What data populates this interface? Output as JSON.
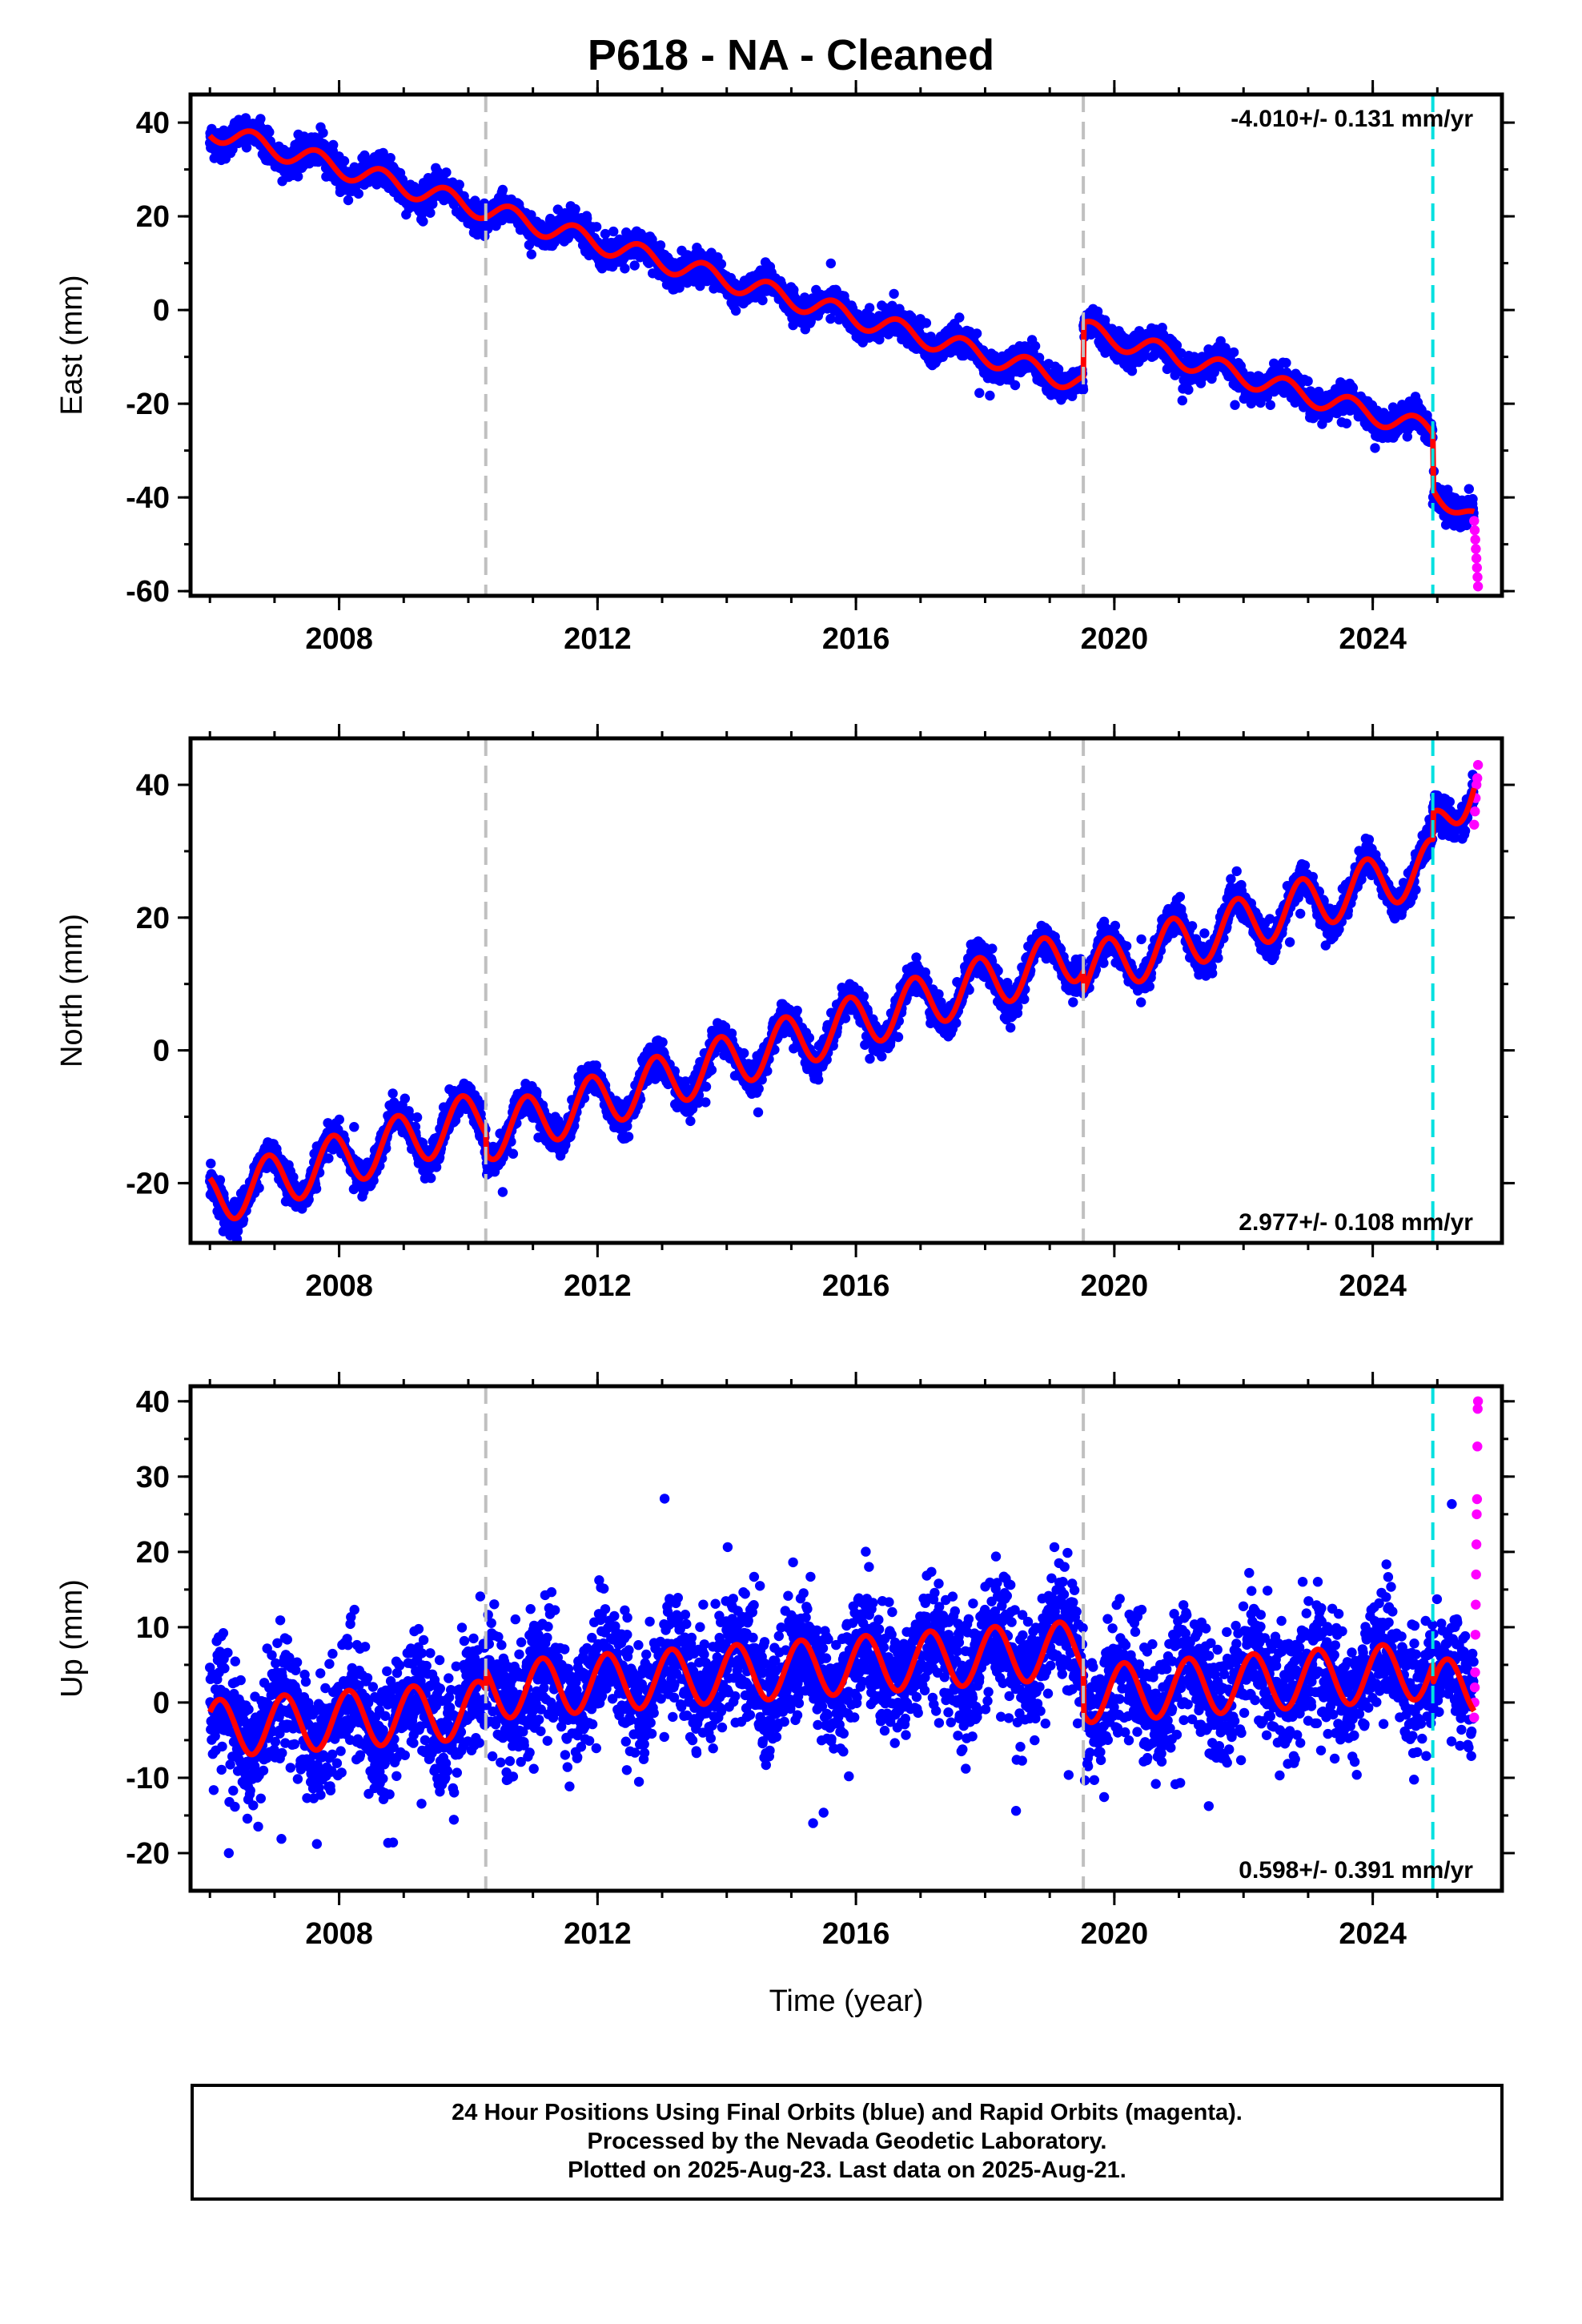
{
  "title": "P618  - NA - Cleaned",
  "caption": {
    "line1": "24 Hour Positions Using Final Orbits (blue) and Rapid Orbits (magenta).",
    "line2": "Processed by the Nevada Geodetic Laboratory.",
    "line3": "Plotted on 2025-Aug-23. Last data on 2025-Aug-21."
  },
  "colors": {
    "final_orbits": "#0000ff",
    "rapid_orbits": "#ff00ff",
    "model": "#ff0000",
    "equipment_change": "#c0c0c0",
    "earthquake": "#00e0e0"
  },
  "chart_data": [
    {
      "type": "scatter",
      "ylabel": "East (mm)",
      "xlabel": "",
      "xlim": [
        2005.7,
        2026.0
      ],
      "ylim": [
        -61,
        46
      ],
      "x_ticks": [
        2008,
        2012,
        2016,
        2020,
        2024
      ],
      "y_ticks": [
        40,
        20,
        0,
        -20,
        -40,
        -60
      ],
      "rate_label": "-4.010+/- 0.131 mm/yr",
      "rate_position": "top-right",
      "grey_dashed_lines": [
        2010.27,
        2019.52
      ],
      "cyan_dashed_lines": [
        2024.93
      ],
      "model": {
        "rate_mm_per_yr": -4.01,
        "value_at_2006": 38.5,
        "annual_amplitude_mm": 2.2,
        "annual_phase": 0.6,
        "offsets": [
          {
            "year": 2010.27,
            "mm": 0
          },
          {
            "year": 2019.52,
            "mm": 11.5
          },
          {
            "year": 2024.93,
            "mm": -12.0
          }
        ],
        "post_2024_extra_slope_mm_per_yr": -7
      },
      "scatter_sigma_mm": 1.5,
      "rapid_orbit_points": {
        "x_range": [
          2025.57,
          2025.63
        ],
        "y_values": [
          -45,
          -47,
          -49,
          -51,
          -53,
          -55,
          -57,
          -59
        ]
      }
    },
    {
      "type": "scatter",
      "ylabel": "North (mm)",
      "xlabel": "",
      "xlim": [
        2005.7,
        2026.0
      ],
      "ylim": [
        -29,
        47
      ],
      "x_ticks": [
        2008,
        2012,
        2016,
        2020,
        2024
      ],
      "y_ticks": [
        40,
        20,
        0,
        -20
      ],
      "rate_label": "2.977+/- 0.108 mm/yr",
      "rate_position": "bottom-right",
      "grey_dashed_lines": [
        2010.27,
        2019.52
      ],
      "cyan_dashed_lines": [
        2024.93
      ],
      "model": {
        "rate_mm_per_yr": 2.977,
        "value_at_2006": -22.5,
        "annual_amplitude_mm": 4.0,
        "annual_phase": 0.35,
        "offsets": [
          {
            "year": 2010.27,
            "mm": -3.0
          },
          {
            "year": 2019.52,
            "mm": -3.0
          },
          {
            "year": 2024.93,
            "mm": 4.0
          }
        ],
        "post_2024_extra_slope_mm_per_yr": 12
      },
      "scatter_sigma_mm": 1.2,
      "rapid_orbit_points": {
        "x_range": [
          2025.57,
          2025.63
        ],
        "y_values": [
          34,
          36,
          38,
          40,
          41,
          43
        ]
      }
    },
    {
      "type": "scatter",
      "ylabel": "Up (mm)",
      "xlabel": "Time (year)",
      "xlim": [
        2005.7,
        2026.0
      ],
      "ylim": [
        -25,
        42
      ],
      "x_ticks": [
        2008,
        2012,
        2016,
        2020,
        2024
      ],
      "y_ticks": [
        40,
        30,
        20,
        10,
        0,
        -10,
        -20
      ],
      "rate_label": "0.598+/- 0.391 mm/yr",
      "rate_position": "bottom-right",
      "grey_dashed_lines": [
        2010.27,
        2019.52
      ],
      "cyan_dashed_lines": [
        2024.93
      ],
      "model": {
        "rate_mm_per_yr": 0.598,
        "value_at_2006": -3.5,
        "annual_amplitude_mm": 3.8,
        "annual_phase": 0.1,
        "offsets": [
          {
            "year": 2010.27,
            "mm": 2.5
          },
          {
            "year": 2019.52,
            "mm": -6.0
          },
          {
            "year": 2024.93,
            "mm": -2.5
          }
        ],
        "post_2024_extra_slope_mm_per_yr": 0
      },
      "scatter_sigma_mm": 4.0,
      "rapid_orbit_points": {
        "x_range": [
          2025.57,
          2025.63
        ],
        "y_values": [
          -2,
          0,
          2,
          4,
          9,
          13,
          17,
          21,
          25,
          27,
          34,
          39,
          40
        ]
      }
    }
  ]
}
